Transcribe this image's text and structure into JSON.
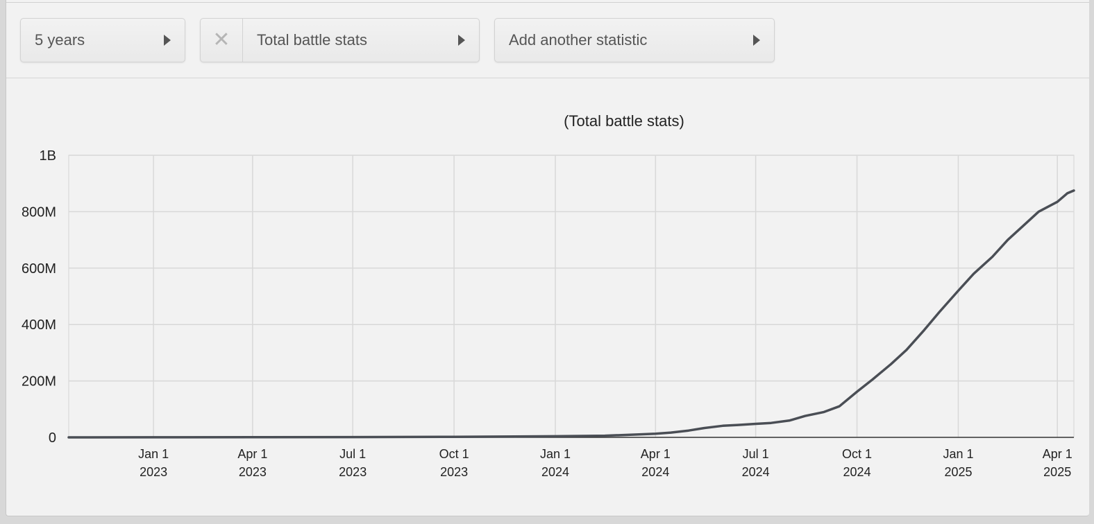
{
  "controls": {
    "range_label": "5 years",
    "stat_label": "Total battle stats",
    "remove_symbol": "✕",
    "add_label": "Add another statistic"
  },
  "chart_data": {
    "type": "line",
    "title": "(Total battle stats)",
    "xlabel": "",
    "ylabel": "",
    "xlim": [
      "2022-10-16",
      "2025-04-16"
    ],
    "ylim": [
      0,
      1000000000
    ],
    "grid": true,
    "legend": "none",
    "line_color": "#4a4e55",
    "y_ticks": [
      {
        "value": 0,
        "label": "0"
      },
      {
        "value": 200000000,
        "label": "200M"
      },
      {
        "value": 400000000,
        "label": "400M"
      },
      {
        "value": 600000000,
        "label": "600M"
      },
      {
        "value": 800000000,
        "label": "800M"
      },
      {
        "value": 1000000000,
        "label": "1B"
      }
    ],
    "x_ticks": [
      {
        "date": "2023-01-01",
        "label": "Jan 1",
        "year": "2023"
      },
      {
        "date": "2023-04-01",
        "label": "Apr 1",
        "year": "2023"
      },
      {
        "date": "2023-07-01",
        "label": "Jul 1",
        "year": "2023"
      },
      {
        "date": "2023-10-01",
        "label": "Oct 1",
        "year": "2023"
      },
      {
        "date": "2024-01-01",
        "label": "Jan 1",
        "year": "2024"
      },
      {
        "date": "2024-04-01",
        "label": "Apr 1",
        "year": "2024"
      },
      {
        "date": "2024-07-01",
        "label": "Jul 1",
        "year": "2024"
      },
      {
        "date": "2024-10-01",
        "label": "Oct 1",
        "year": "2024"
      },
      {
        "date": "2025-01-01",
        "label": "Jan 1",
        "year": "2025"
      },
      {
        "date": "2025-04-01",
        "label": "Apr 1",
        "year": "2025"
      }
    ],
    "series": [
      {
        "points": [
          [
            "2022-10-16",
            0
          ],
          [
            "2023-01-01",
            200000
          ],
          [
            "2023-04-01",
            500000
          ],
          [
            "2023-07-01",
            1000000
          ],
          [
            "2023-10-01",
            2000000
          ],
          [
            "2024-01-01",
            4000000
          ],
          [
            "2024-02-15",
            6000000
          ],
          [
            "2024-03-15",
            10000000
          ],
          [
            "2024-04-01",
            13000000
          ],
          [
            "2024-04-15",
            17000000
          ],
          [
            "2024-05-01",
            24000000
          ],
          [
            "2024-05-15",
            33000000
          ],
          [
            "2024-06-01",
            41000000
          ],
          [
            "2024-06-15",
            44000000
          ],
          [
            "2024-07-01",
            48000000
          ],
          [
            "2024-07-15",
            51000000
          ],
          [
            "2024-08-01",
            60000000
          ],
          [
            "2024-08-15",
            76000000
          ],
          [
            "2024-09-01",
            90000000
          ],
          [
            "2024-09-15",
            110000000
          ],
          [
            "2024-10-01",
            162000000
          ],
          [
            "2024-10-15",
            205000000
          ],
          [
            "2024-11-01",
            260000000
          ],
          [
            "2024-11-15",
            310000000
          ],
          [
            "2024-12-01",
            380000000
          ],
          [
            "2024-12-15",
            445000000
          ],
          [
            "2025-01-01",
            520000000
          ],
          [
            "2025-01-15",
            580000000
          ],
          [
            "2025-02-01",
            640000000
          ],
          [
            "2025-02-15",
            700000000
          ],
          [
            "2025-03-01",
            750000000
          ],
          [
            "2025-03-15",
            800000000
          ],
          [
            "2025-04-01",
            835000000
          ],
          [
            "2025-04-10",
            865000000
          ],
          [
            "2025-04-16",
            875000000
          ]
        ]
      }
    ]
  }
}
